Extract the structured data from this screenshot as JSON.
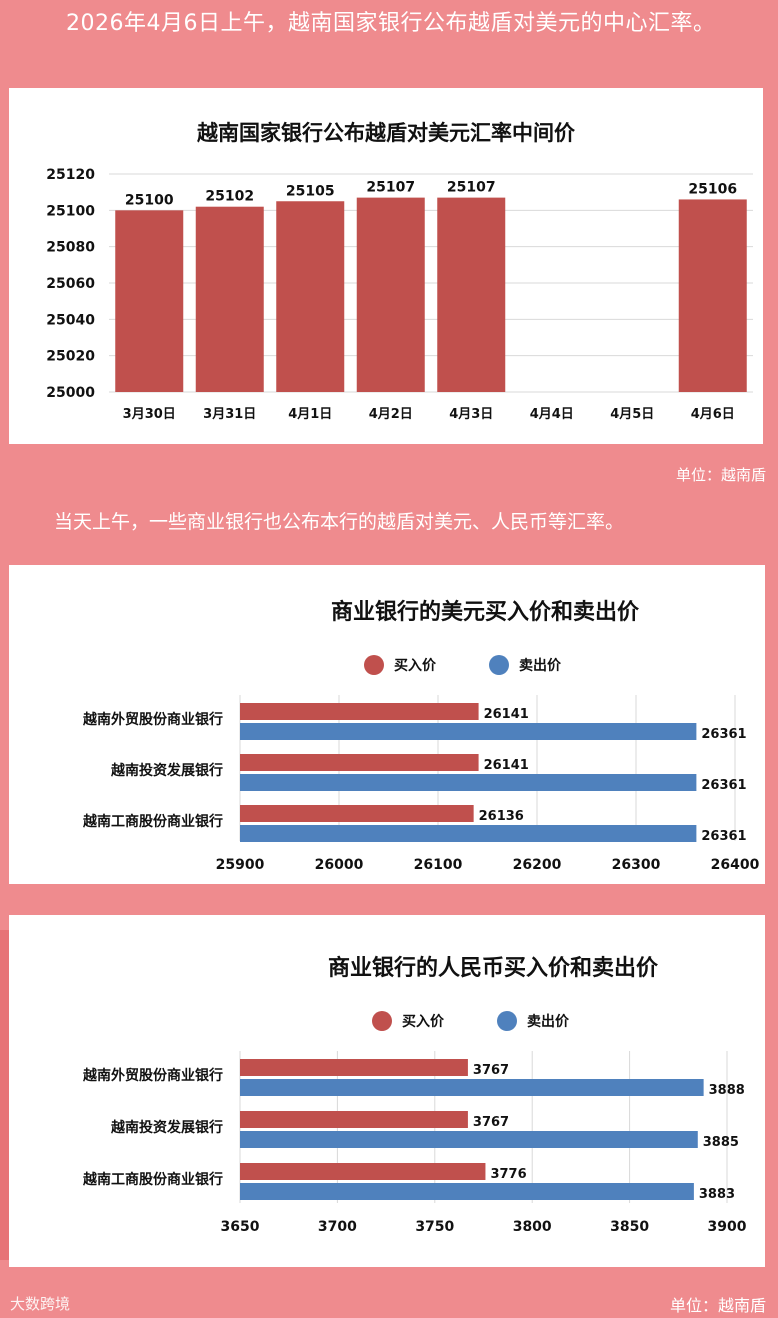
{
  "intro_text": "2026年4月6日上午，越南国家银行公布越盾对美元的中心汇率。",
  "mid_text": "当天上午，一些商业银行也公布本行的越盾对美元、人民币等汇率。",
  "unit_label_1": "单位：越南盾",
  "unit_label_2": "单位：越南盾",
  "watermark": "大数跨境",
  "colors": {
    "background": "#ef8b8e",
    "bar_red": "#c0504d",
    "bar_blue": "#4f81bd"
  },
  "chart_data": [
    {
      "type": "bar",
      "title": "越南国家银行公布越盾对美元汇率中间价",
      "categories": [
        "3月30日",
        "3月31日",
        "4月1日",
        "4月2日",
        "4月3日",
        "4月4日",
        "4月5日",
        "4月6日"
      ],
      "values": [
        25100,
        25102,
        25105,
        25107,
        25107,
        null,
        null,
        25106
      ],
      "ylim": [
        25000,
        25120
      ],
      "yticks": [
        25000,
        25020,
        25040,
        25060,
        25080,
        25100,
        25120
      ],
      "grid": true
    },
    {
      "type": "bar",
      "orientation": "horizontal",
      "title": "商业银行的美元买入价和卖出价",
      "categories": [
        "越南外贸股份商业银行",
        "越南投资发展银行",
        "越南工商股份商业银行"
      ],
      "series": [
        {
          "name": "买入价",
          "values": [
            26141,
            26141,
            26136
          ]
        },
        {
          "name": "卖出价",
          "values": [
            26361,
            26361,
            26361
          ]
        }
      ],
      "xlim": [
        25900,
        26400
      ],
      "xticks": [
        25900,
        26000,
        26100,
        26200,
        26300,
        26400
      ],
      "legend": "top"
    },
    {
      "type": "bar",
      "orientation": "horizontal",
      "title": "商业银行的人民币买入价和卖出价",
      "categories": [
        "越南外贸股份商业银行",
        "越南投资发展银行",
        "越南工商股份商业银行"
      ],
      "series": [
        {
          "name": "买入价",
          "values": [
            3767,
            3767,
            3776
          ]
        },
        {
          "name": "卖出价",
          "values": [
            3888,
            3885,
            3883
          ]
        }
      ],
      "xlim": [
        3650,
        3900
      ],
      "xticks": [
        3650,
        3700,
        3750,
        3800,
        3850,
        3900
      ],
      "legend": "top"
    }
  ]
}
